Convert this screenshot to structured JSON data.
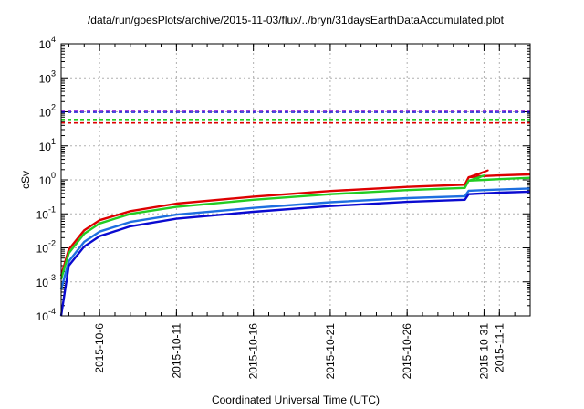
{
  "chart_data": {
    "type": "line",
    "title": "/data/run/goesPlots/archive/2015-11-03/flux/../bryn/31daysEarthDataAccumulated.plot",
    "xlabel": "Coordinated Universal Time (UTC)",
    "ylabel": "cSv",
    "y_scale": "log",
    "ylim": [
      0.0001,
      10000
    ],
    "xlim": [
      "2015-10-03T12:00",
      "2015-11-03T00:00"
    ],
    "grid": true,
    "x_ticks": [
      "2015-10-6",
      "2015-10-11",
      "2015-10-16",
      "2015-10-21",
      "2015-10-26",
      "2015-10-31",
      "2015-11-1"
    ],
    "y_ticks": [
      {
        "value": 0.0001,
        "base": "10",
        "exp": "-4"
      },
      {
        "value": 0.001,
        "base": "10",
        "exp": "-3"
      },
      {
        "value": 0.01,
        "base": "10",
        "exp": "-2"
      },
      {
        "value": 0.1,
        "base": "10",
        "exp": "-1"
      },
      {
        "value": 1,
        "base": "10",
        "exp": "0"
      },
      {
        "value": 10,
        "base": "10",
        "exp": "1"
      },
      {
        "value": 100,
        "base": "10",
        "exp": "2"
      },
      {
        "value": 1000,
        "base": "10",
        "exp": "3"
      },
      {
        "value": 10000,
        "base": "10",
        "exp": "4"
      }
    ],
    "thresholds": [
      {
        "value": 110,
        "color": "#8b00d4",
        "style": "dashed"
      },
      {
        "value": 97,
        "color": "#1010d0",
        "style": "dashed"
      },
      {
        "value": 60,
        "color": "#22cc22",
        "style": "dashed"
      },
      {
        "value": 47,
        "color": "#dd0000",
        "style": "dashed"
      }
    ],
    "series": [
      {
        "color": "#dd0000",
        "x": [
          "2015-10-03T12:00",
          "2015-10-04T00:00",
          "2015-10-05T00:00",
          "2015-10-06T00:00",
          "2015-10-08T00:00",
          "2015-10-11T00:00",
          "2015-10-16T00:00",
          "2015-10-21T00:00",
          "2015-10-26T00:00",
          "2015-10-29T18:00",
          "2015-10-30T00:00",
          "2015-10-31T00:00",
          "2015-11-01T00:00",
          "2015-11-03T00:00"
        ],
        "y": [
          0.0015,
          0.009,
          0.033,
          0.065,
          0.12,
          0.2,
          0.32,
          0.47,
          0.62,
          0.72,
          1.2,
          1.3,
          1.35,
          1.45
        ]
      },
      {
        "color": "#22cc22",
        "x": [
          "2015-10-03T12:00",
          "2015-10-04T00:00",
          "2015-10-05T00:00",
          "2015-10-06T00:00",
          "2015-10-08T00:00",
          "2015-10-11T00:00",
          "2015-10-16T00:00",
          "2015-10-21T00:00",
          "2015-10-26T00:00",
          "2015-10-29T18:00",
          "2015-10-30T00:00",
          "2015-10-31T00:00",
          "2015-11-01T00:00",
          "2015-11-03T00:00"
        ],
        "y": [
          0.0012,
          0.007,
          0.026,
          0.052,
          0.1,
          0.16,
          0.26,
          0.38,
          0.5,
          0.58,
          0.95,
          1.0,
          1.05,
          1.15
        ]
      },
      {
        "color": "#1e6fe0",
        "x": [
          "2015-10-03T12:00",
          "2015-10-04T00:00",
          "2015-10-05T00:00",
          "2015-10-06T00:00",
          "2015-10-08T00:00",
          "2015-10-11T00:00",
          "2015-10-16T00:00",
          "2015-10-21T00:00",
          "2015-10-26T00:00",
          "2015-10-29T18:00",
          "2015-10-30T00:00",
          "2015-10-31T00:00",
          "2015-11-01T00:00",
          "2015-11-03T00:00"
        ],
        "y": [
          0.0006,
          0.004,
          0.015,
          0.03,
          0.058,
          0.095,
          0.15,
          0.22,
          0.29,
          0.33,
          0.48,
          0.5,
          0.52,
          0.56
        ]
      },
      {
        "color": "#0a0ad0",
        "x": [
          "2015-10-03T12:00",
          "2015-10-04T00:00",
          "2015-10-05T00:00",
          "2015-10-06T00:00",
          "2015-10-08T00:00",
          "2015-10-11T00:00",
          "2015-10-16T00:00",
          "2015-10-21T00:00",
          "2015-10-26T00:00",
          "2015-10-29T18:00",
          "2015-10-30T00:00",
          "2015-10-31T00:00",
          "2015-11-01T00:00",
          "2015-11-03T00:00"
        ],
        "y": [
          0.0001,
          0.003,
          0.011,
          0.022,
          0.043,
          0.072,
          0.115,
          0.17,
          0.225,
          0.26,
          0.38,
          0.4,
          0.42,
          0.45
        ]
      }
    ],
    "spikes": [
      {
        "color": "#dd0000",
        "x": [
          "2015-10-30T00:00",
          "2015-10-31T06:00",
          "2015-10-30T12:00"
        ],
        "y": [
          1.2,
          1.9,
          1.35
        ]
      },
      {
        "color": "#22cc22",
        "x": [
          "2015-10-30T00:00",
          "2015-10-31T00:00",
          "2015-10-30T12:00"
        ],
        "y": [
          0.95,
          1.35,
          1.05
        ]
      }
    ]
  }
}
